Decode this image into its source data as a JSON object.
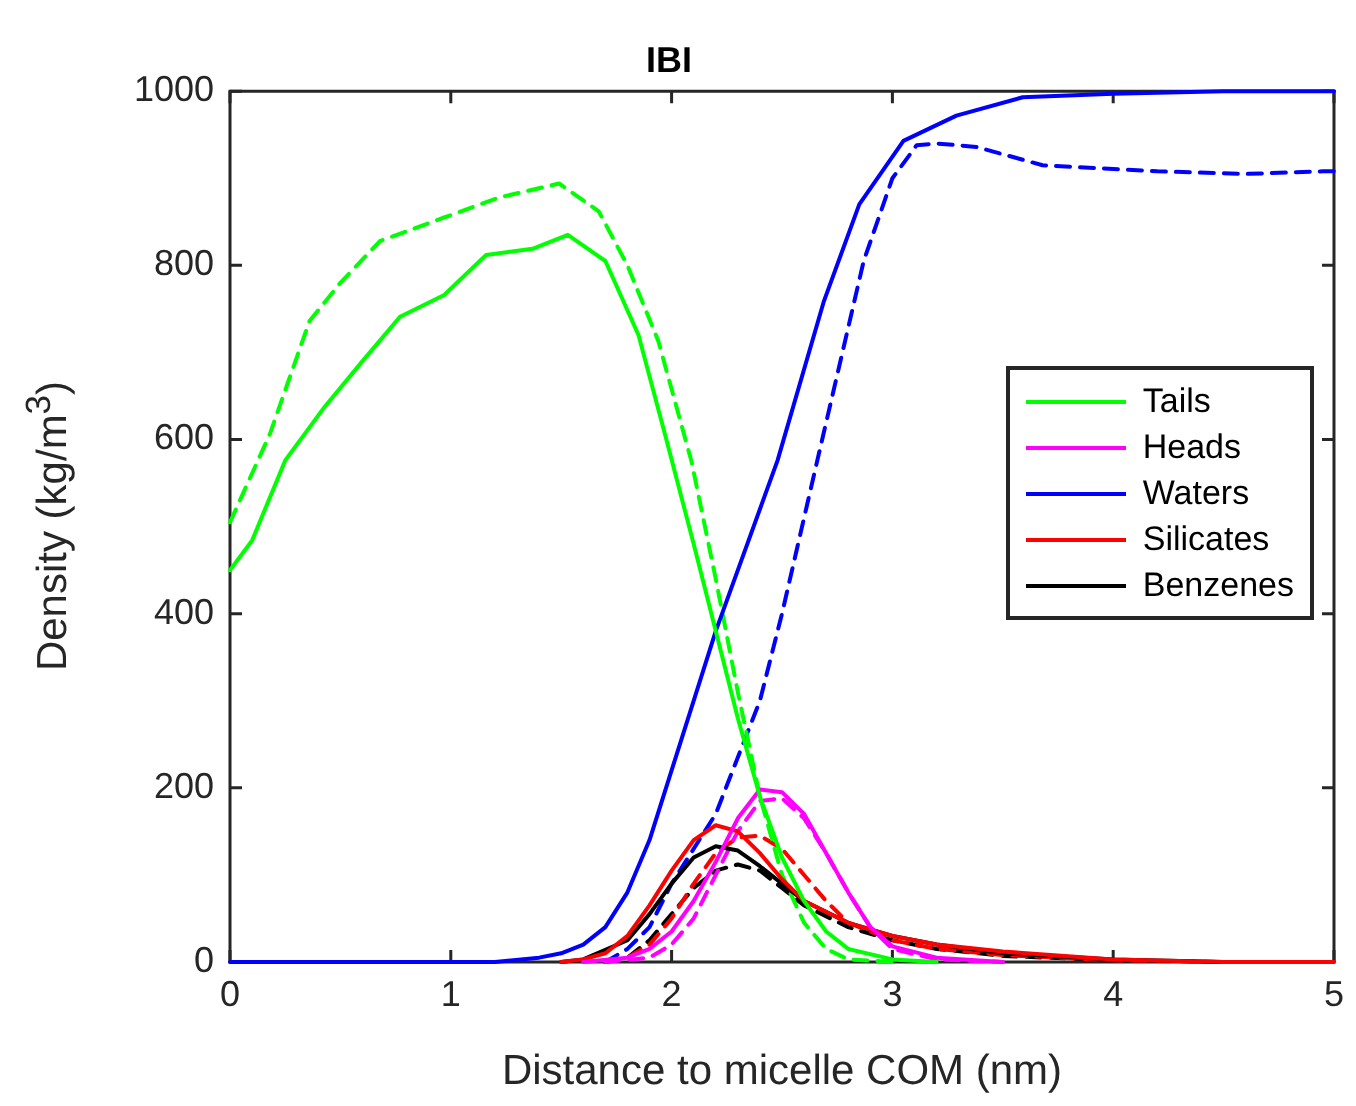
{
  "chart_data": {
    "type": "line",
    "title": "IBI",
    "xlabel": "Distance to micelle COM (nm)",
    "ylabel": "Density (kg/m$^{3}$)",
    "xlim": [
      0,
      5
    ],
    "xticks": [
      0,
      1,
      2,
      3,
      4,
      5
    ],
    "ylim": [
      0,
      1000
    ],
    "yticks": [
      0,
      200,
      400,
      600,
      800,
      1000
    ],
    "grid": false,
    "legend": "right",
    "marker": "none",
    "series": [
      {
        "name": "Tails",
        "color": "#00ff00",
        "line_style": "solid",
        "x": [
          0,
          0.1,
          0.25,
          0.43,
          0.6,
          0.77,
          0.97,
          1.16,
          1.37,
          1.53,
          1.7,
          1.85,
          1.97,
          2.1,
          2.2,
          2.3,
          2.4,
          2.5,
          2.6,
          2.7,
          2.8,
          3.0,
          3.2
        ],
        "values": [
          450,
          484,
          576,
          638,
          690,
          741,
          766,
          812,
          819,
          835,
          805,
          720,
          606,
          480,
          380,
          280,
          190,
          120,
          70,
          35,
          15,
          3,
          0
        ]
      },
      {
        "name": "Heads",
        "color": "#ff00ff",
        "line_style": "solid",
        "x": [
          1.6,
          1.8,
          1.9,
          2.0,
          2.1,
          2.2,
          2.3,
          2.4,
          2.5,
          2.6,
          2.7,
          2.8,
          2.9,
          3.0,
          3.2,
          3.5
        ],
        "values": [
          0,
          5,
          15,
          35,
          70,
          115,
          165,
          198,
          195,
          170,
          125,
          80,
          40,
          18,
          5,
          0
        ]
      },
      {
        "name": "Waters",
        "color": "#0000ff",
        "line_style": "solid",
        "x": [
          0,
          1.2,
          1.4,
          1.5,
          1.6,
          1.7,
          1.8,
          1.9,
          2.0,
          2.2,
          2.48,
          2.69,
          2.85,
          3.05,
          3.29,
          3.59,
          4.0,
          4.5,
          5.0
        ],
        "values": [
          0,
          0,
          5,
          10,
          20,
          40,
          80,
          140,
          220,
          380,
          576,
          759,
          870,
          943,
          972,
          993,
          997,
          1000,
          1000
        ]
      },
      {
        "name": "Silicates",
        "color": "#ff0000",
        "line_style": "solid",
        "x": [
          1.5,
          1.6,
          1.7,
          1.8,
          1.9,
          2.0,
          2.1,
          2.2,
          2.3,
          2.4,
          2.5,
          2.6,
          2.8,
          3.0,
          3.2,
          3.5,
          4.0,
          4.5,
          5.0
        ],
        "values": [
          0,
          3,
          10,
          30,
          65,
          105,
          140,
          157,
          150,
          125,
          95,
          70,
          45,
          30,
          20,
          12,
          3,
          0,
          0
        ]
      },
      {
        "name": "Benzenes",
        "color": "#000000",
        "line_style": "solid",
        "x": [
          1.5,
          1.6,
          1.8,
          1.9,
          2.0,
          2.1,
          2.2,
          2.3,
          2.4,
          2.5,
          2.6,
          2.8,
          3.0,
          3.2,
          3.5,
          4.0,
          4.5
        ],
        "values": [
          0,
          3,
          25,
          55,
          90,
          120,
          133,
          128,
          110,
          90,
          70,
          45,
          30,
          20,
          10,
          3,
          0
        ]
      },
      {
        "color": "#00ff00",
        "line_style": "dashed",
        "x": [
          0,
          0.18,
          0.36,
          0.5,
          0.68,
          0.97,
          1.22,
          1.49,
          1.67,
          1.8,
          1.94,
          2.09,
          2.2,
          2.3,
          2.4,
          2.5,
          2.6,
          2.7,
          2.8,
          3.0
        ],
        "values": [
          505,
          606,
          736,
          780,
          828,
          855,
          878,
          894,
          862,
          800,
          713,
          575,
          440,
          310,
          190,
          100,
          45,
          15,
          3,
          0
        ]
      },
      {
        "color": "#ff00ff",
        "line_style": "dashed",
        "x": [
          1.7,
          1.9,
          2.0,
          2.1,
          2.2,
          2.3,
          2.4,
          2.5,
          2.6,
          2.7,
          2.8,
          2.9,
          3.0,
          3.2,
          3.5
        ],
        "values": [
          0,
          5,
          20,
          50,
          100,
          150,
          185,
          188,
          165,
          125,
          80,
          40,
          15,
          3,
          0
        ]
      },
      {
        "color": "#0000ff",
        "line_style": "dashed",
        "x": [
          1.7,
          1.8,
          1.9,
          2.0,
          2.2,
          2.4,
          2.5,
          2.66,
          2.87,
          3.0,
          3.11,
          3.2,
          3.38,
          3.68,
          4.2,
          4.6,
          4.95,
          5.0
        ],
        "values": [
          0,
          15,
          40,
          90,
          170,
          300,
          400,
          576,
          805,
          900,
          938,
          940,
          936,
          915,
          908,
          905,
          908,
          908
        ]
      },
      {
        "color": "#ff0000",
        "line_style": "dashed",
        "x": [
          1.7,
          1.8,
          1.9,
          2.0,
          2.1,
          2.2,
          2.3,
          2.4,
          2.5,
          2.6,
          2.7,
          2.8,
          3.0,
          3.2,
          3.5,
          4.0,
          4.5
        ],
        "values": [
          0,
          5,
          20,
          50,
          90,
          125,
          143,
          145,
          130,
          100,
          70,
          45,
          25,
          15,
          8,
          2,
          0
        ]
      },
      {
        "color": "#000000",
        "line_style": "dashed",
        "x": [
          1.7,
          1.8,
          1.9,
          2.0,
          2.1,
          2.2,
          2.3,
          2.4,
          2.5,
          2.6,
          2.8,
          3.0,
          3.2,
          3.5,
          4.0
        ],
        "values": [
          0,
          5,
          25,
          55,
          85,
          105,
          112,
          105,
          85,
          65,
          40,
          25,
          15,
          7,
          2
        ]
      }
    ]
  }
}
